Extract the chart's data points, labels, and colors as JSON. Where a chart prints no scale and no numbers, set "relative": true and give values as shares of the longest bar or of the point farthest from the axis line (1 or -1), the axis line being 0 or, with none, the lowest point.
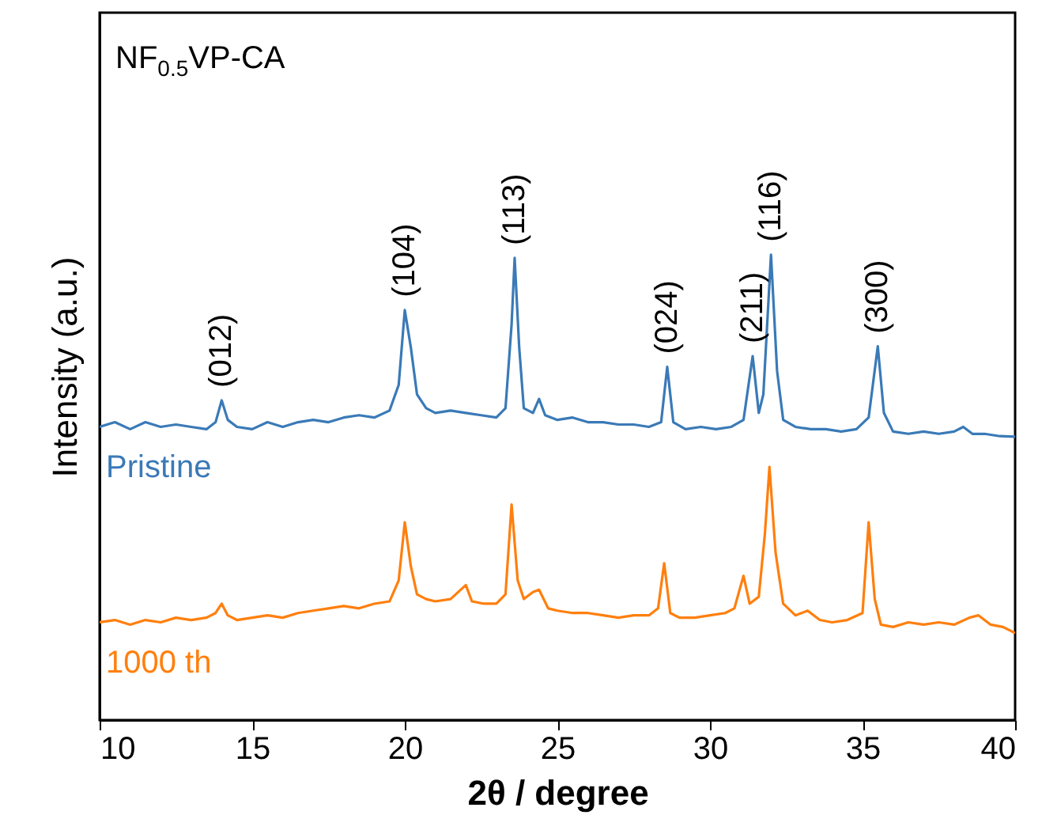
{
  "chart_data": {
    "type": "line",
    "title": "NF$_{0.5}$VP-CA",
    "xlabel": "2θ / degree",
    "ylabel": "Intensity (a.u.)",
    "relative": true,
    "xlim": [
      10,
      40
    ],
    "xticks": [
      10,
      15,
      20,
      25,
      30,
      35,
      40
    ],
    "series": [
      {
        "name": "Pristine",
        "color": "#3a7ab7",
        "x": [
          10,
          10.5,
          11,
          11.5,
          12,
          12.5,
          13,
          13.5,
          13.8,
          14.0,
          14.2,
          14.5,
          15,
          15.5,
          16,
          16.5,
          17,
          17.5,
          18,
          18.5,
          19,
          19.5,
          19.8,
          20.0,
          20.2,
          20.4,
          20.7,
          21,
          21.5,
          22,
          22.5,
          23,
          23.3,
          23.5,
          23.6,
          23.75,
          23.9,
          24.2,
          24.4,
          24.6,
          25,
          25.5,
          26,
          26.5,
          27,
          27.5,
          28,
          28.4,
          28.6,
          28.8,
          29.2,
          29.7,
          30.2,
          30.7,
          31.1,
          31.4,
          31.6,
          31.75,
          32.0,
          32.2,
          32.4,
          32.8,
          33.3,
          33.8,
          34.3,
          34.8,
          35.2,
          35.5,
          35.7,
          36,
          36.5,
          37,
          37.5,
          38,
          38.3,
          38.6,
          39,
          39.5,
          40
        ],
        "values": [
          0.63,
          0.64,
          0.625,
          0.64,
          0.63,
          0.635,
          0.63,
          0.625,
          0.64,
          0.687,
          0.645,
          0.63,
          0.625,
          0.64,
          0.63,
          0.64,
          0.645,
          0.64,
          0.65,
          0.655,
          0.65,
          0.665,
          0.72,
          0.881,
          0.8,
          0.7,
          0.67,
          0.66,
          0.665,
          0.66,
          0.655,
          0.65,
          0.67,
          0.85,
          0.993,
          0.8,
          0.67,
          0.66,
          0.69,
          0.655,
          0.645,
          0.65,
          0.64,
          0.64,
          0.635,
          0.635,
          0.63,
          0.64,
          0.759,
          0.64,
          0.625,
          0.63,
          0.625,
          0.63,
          0.645,
          0.782,
          0.66,
          0.7,
          1.0,
          0.75,
          0.645,
          0.63,
          0.625,
          0.625,
          0.62,
          0.625,
          0.65,
          0.803,
          0.66,
          0.62,
          0.615,
          0.62,
          0.615,
          0.62,
          0.63,
          0.615,
          0.615,
          0.61,
          0.609
        ]
      },
      {
        "name": "1000 th",
        "color": "#ff7f0e",
        "x": [
          10,
          10.5,
          11,
          11.5,
          12,
          12.5,
          13,
          13.5,
          13.8,
          14.0,
          14.2,
          14.5,
          15,
          15.5,
          16,
          16.5,
          17,
          17.5,
          18,
          18.5,
          19,
          19.5,
          19.8,
          20.0,
          20.2,
          20.4,
          20.7,
          21,
          21.5,
          22.0,
          22.2,
          22.6,
          23,
          23.3,
          23.5,
          23.7,
          23.9,
          24.2,
          24.4,
          24.7,
          25,
          25.5,
          26,
          26.5,
          27,
          27.5,
          28,
          28.3,
          28.5,
          28.7,
          29,
          29.5,
          30,
          30.5,
          30.8,
          31.1,
          31.3,
          31.6,
          31.8,
          31.95,
          32.15,
          32.4,
          32.8,
          33.2,
          33.6,
          34,
          34.5,
          35,
          35.2,
          35.4,
          35.6,
          36,
          36.5,
          37,
          37.5,
          38,
          38.5,
          38.8,
          39.2,
          39.6,
          40
        ],
        "values": [
          0.21,
          0.215,
          0.205,
          0.215,
          0.21,
          0.22,
          0.215,
          0.22,
          0.23,
          0.25,
          0.225,
          0.215,
          0.22,
          0.225,
          0.22,
          0.23,
          0.235,
          0.24,
          0.245,
          0.24,
          0.25,
          0.255,
          0.3,
          0.425,
          0.33,
          0.27,
          0.26,
          0.255,
          0.26,
          0.29,
          0.255,
          0.25,
          0.25,
          0.27,
          0.463,
          0.3,
          0.26,
          0.275,
          0.28,
          0.24,
          0.235,
          0.23,
          0.23,
          0.225,
          0.22,
          0.225,
          0.225,
          0.24,
          0.337,
          0.23,
          0.22,
          0.22,
          0.225,
          0.23,
          0.24,
          0.31,
          0.25,
          0.265,
          0.4,
          0.544,
          0.36,
          0.25,
          0.225,
          0.235,
          0.215,
          0.21,
          0.215,
          0.23,
          0.425,
          0.26,
          0.205,
          0.2,
          0.21,
          0.205,
          0.21,
          0.205,
          0.22,
          0.225,
          0.205,
          0.2,
          0.187
        ]
      }
    ],
    "annotations": [
      {
        "text": "(012)",
        "x": 14.0,
        "y": 0.687
      },
      {
        "text": "(104)",
        "x": 20.0,
        "y": 0.881
      },
      {
        "text": "(113)",
        "x": 23.6,
        "y": 0.993
      },
      {
        "text": "(024)",
        "x": 28.6,
        "y": 0.759
      },
      {
        "text": "(211)",
        "x": 31.4,
        "y": 0.782
      },
      {
        "text": "(116)",
        "x": 32.0,
        "y": 1.0
      },
      {
        "text": "(300)",
        "x": 35.5,
        "y": 0.803
      }
    ]
  }
}
